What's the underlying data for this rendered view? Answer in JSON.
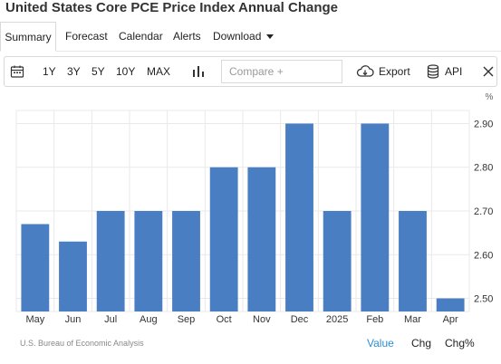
{
  "page": {
    "title": "United States Core PCE Price Index Annual Change"
  },
  "tabs": [
    "Summary",
    "Forecast",
    "Calendar",
    "Alerts",
    "Download"
  ],
  "toolbar": {
    "ranges": [
      "1Y",
      "3Y",
      "5Y",
      "10Y",
      "MAX"
    ],
    "compare_placeholder": "Compare +",
    "export_label": "Export",
    "api_label": "API"
  },
  "colors": {
    "bar": "#4a7ec2",
    "accent": "#2a8fd4",
    "grid": "#e9e9e9"
  },
  "chart_data": {
    "type": "bar",
    "categories": [
      "May",
      "Jun",
      "Jul",
      "Aug",
      "Sep",
      "Oct",
      "Nov",
      "Dec",
      "2025",
      "Feb",
      "Mar",
      "Apr"
    ],
    "values": [
      2.67,
      2.63,
      2.7,
      2.7,
      2.7,
      2.8,
      2.8,
      2.9,
      2.7,
      2.9,
      2.7,
      2.5
    ],
    "unit": "%",
    "yticks": [
      "2.90",
      "2.80",
      "2.70",
      "2.60",
      "2.50"
    ],
    "ylim": [
      2.47,
      2.93
    ],
    "grid": true
  },
  "footer": {
    "source": "U.S. Bureau of Economic Analysis",
    "value_label": "Value",
    "chg_label": "Chg",
    "chgpct_label": "Chg%"
  }
}
